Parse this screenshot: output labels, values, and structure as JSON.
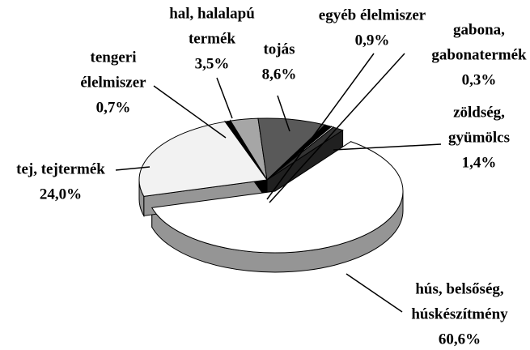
{
  "chart_data": {
    "type": "pie",
    "categories": [
      [
        "hal, halalapú",
        "termék"
      ],
      [
        "tojás"
      ],
      [
        "egyéb élelmiszer"
      ],
      [
        "gabona,",
        "gabonatermék"
      ],
      [
        "zöldség,",
        "gyümölcs"
      ],
      [
        "hús, belsőség,",
        "húskészítmény"
      ],
      [
        "tej, tejtermék"
      ],
      [
        "tengeri",
        "élelmiszer"
      ]
    ],
    "values": [
      3.5,
      8.6,
      0.9,
      0.3,
      1.4,
      60.6,
      24.0,
      0.7
    ],
    "value_labels": [
      "3,5%",
      "8,6%",
      "0,9%",
      "0,3%",
      "1,4%",
      "60,6%",
      "24,0%",
      "0,7%"
    ],
    "colors": [
      "#a6a6a6",
      "#595959",
      "#000000",
      "#d9d9d9",
      "#333333",
      "#ffffff",
      "#f2f2f2",
      "#000000"
    ]
  }
}
